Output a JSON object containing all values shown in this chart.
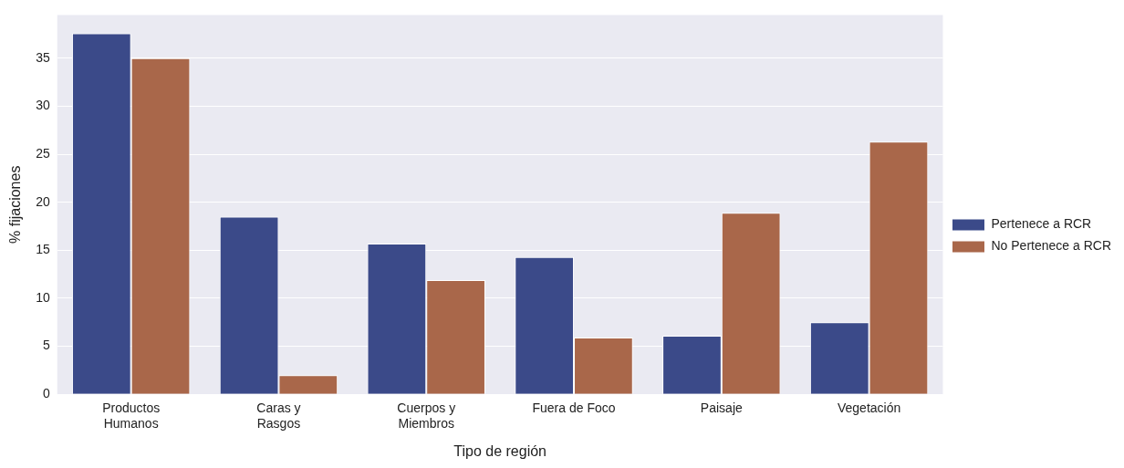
{
  "chart_data": {
    "type": "bar",
    "xlabel": "Tipo de región",
    "ylabel": "% fijaciones",
    "categories": [
      "Productos Humanos",
      "Caras y Rasgos",
      "Cuerpos y Miembros",
      "Fuera de Foco",
      "Paisaje",
      "Vegetación"
    ],
    "series": [
      {
        "name": "Pertenece a RCR",
        "color": "#3b4a89",
        "values": [
          37.6,
          18.5,
          15.7,
          14.3,
          6.1,
          7.5
        ]
      },
      {
        "name": "No Pertenece a RCR",
        "color": "#a9674a",
        "values": [
          35.0,
          2.0,
          11.9,
          5.9,
          18.9,
          26.3
        ]
      }
    ],
    "ylim": [
      0,
      39.5
    ],
    "yticks": [
      0,
      5,
      10,
      15,
      20,
      25,
      30,
      35
    ],
    "grid": "y",
    "legend": "right"
  }
}
